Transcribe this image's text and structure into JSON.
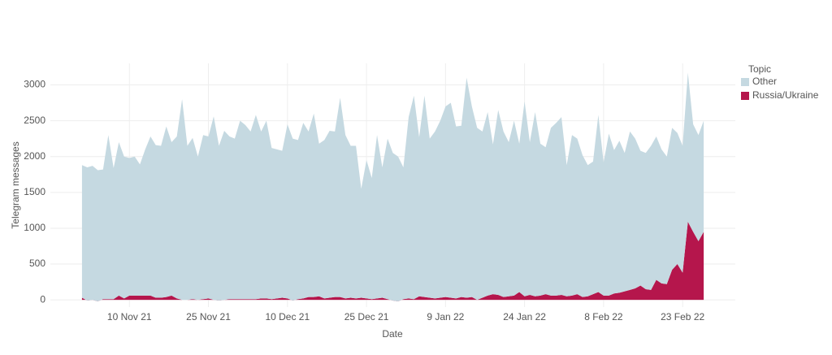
{
  "chart_data": {
    "type": "area",
    "stacked": true,
    "x_label": "Date",
    "y_label": "Telegram messages",
    "legend_title": "Topic",
    "legend_position": "right",
    "grid": true,
    "xlim": [
      "2021-10-26",
      "2022-03-05"
    ],
    "ylim": [
      -100,
      3300
    ],
    "yticks": [
      0,
      500,
      1000,
      1500,
      2000,
      2500,
      3000
    ],
    "xticks": [
      {
        "value": "2021-11-10",
        "label": "10 Nov 21"
      },
      {
        "value": "2021-11-25",
        "label": "25 Nov 21"
      },
      {
        "value": "2021-12-10",
        "label": "10 Dec 21"
      },
      {
        "value": "2021-12-25",
        "label": "25 Dec 21"
      },
      {
        "value": "2022-01-09",
        "label": "9 Jan 22"
      },
      {
        "value": "2022-01-24",
        "label": "24 Jan 22"
      },
      {
        "value": "2022-02-08",
        "label": "8 Feb 22"
      },
      {
        "value": "2022-02-23",
        "label": "23 Feb 22"
      }
    ],
    "x": [
      "2021-11-01",
      "2021-11-02",
      "2021-11-03",
      "2021-11-04",
      "2021-11-05",
      "2021-11-06",
      "2021-11-07",
      "2021-11-08",
      "2021-11-09",
      "2021-11-10",
      "2021-11-11",
      "2021-11-12",
      "2021-11-13",
      "2021-11-14",
      "2021-11-15",
      "2021-11-16",
      "2021-11-17",
      "2021-11-18",
      "2021-11-19",
      "2021-11-20",
      "2021-11-21",
      "2021-11-22",
      "2021-11-23",
      "2021-11-24",
      "2021-11-25",
      "2021-11-26",
      "2021-11-27",
      "2021-11-28",
      "2021-11-29",
      "2021-11-30",
      "2021-12-01",
      "2021-12-02",
      "2021-12-03",
      "2021-12-04",
      "2021-12-05",
      "2021-12-06",
      "2021-12-07",
      "2021-12-08",
      "2021-12-09",
      "2021-12-10",
      "2021-12-11",
      "2021-12-12",
      "2021-12-13",
      "2021-12-14",
      "2021-12-15",
      "2021-12-16",
      "2021-12-17",
      "2021-12-18",
      "2021-12-19",
      "2021-12-20",
      "2021-12-21",
      "2021-12-22",
      "2021-12-23",
      "2021-12-24",
      "2021-12-25",
      "2021-12-26",
      "2021-12-27",
      "2021-12-28",
      "2021-12-29",
      "2021-12-30",
      "2021-12-31",
      "2022-01-01",
      "2022-01-02",
      "2022-01-03",
      "2022-01-04",
      "2022-01-05",
      "2022-01-06",
      "2022-01-07",
      "2022-01-08",
      "2022-01-09",
      "2022-01-10",
      "2022-01-11",
      "2022-01-12",
      "2022-01-13",
      "2022-01-14",
      "2022-01-15",
      "2022-01-16",
      "2022-01-17",
      "2022-01-18",
      "2022-01-19",
      "2022-01-20",
      "2022-01-21",
      "2022-01-22",
      "2022-01-23",
      "2022-01-24",
      "2022-01-25",
      "2022-01-26",
      "2022-01-27",
      "2022-01-28",
      "2022-01-29",
      "2022-01-30",
      "2022-01-31",
      "2022-02-01",
      "2022-02-02",
      "2022-02-03",
      "2022-02-04",
      "2022-02-05",
      "2022-02-06",
      "2022-02-07",
      "2022-02-08",
      "2022-02-09",
      "2022-02-10",
      "2022-02-11",
      "2022-02-12",
      "2022-02-13",
      "2022-02-14",
      "2022-02-15",
      "2022-02-16",
      "2022-02-17",
      "2022-02-18",
      "2022-02-19",
      "2022-02-20",
      "2022-02-21",
      "2022-02-22",
      "2022-02-23",
      "2022-02-24",
      "2022-02-25",
      "2022-02-26",
      "2022-02-27"
    ],
    "series": [
      {
        "name": "Other",
        "color": "#c5d9e1",
        "values": [
          1850,
          1860,
          1870,
          1830,
          1810,
          2290,
          1830,
          2140,
          1980,
          1920,
          1940,
          1830,
          2040,
          2220,
          2130,
          2120,
          2380,
          2140,
          2260,
          2800,
          2150,
          2250,
          2000,
          2290,
          2260,
          2560,
          2160,
          2360,
          2270,
          2240,
          2490,
          2430,
          2340,
          2570,
          2330,
          2480,
          2110,
          2080,
          2050,
          2430,
          2260,
          2220,
          2450,
          2310,
          2560,
          2130,
          2210,
          2330,
          2310,
          2780,
          2280,
          2120,
          2130,
          1520,
          1930,
          1690,
          2280,
          1820,
          2240,
          2060,
          2020,
          1840,
          2530,
          2840,
          2220,
          2810,
          2220,
          2330,
          2470,
          2660,
          2720,
          2400,
          2390,
          3070,
          2660,
          2400,
          2320,
          2560,
          2090,
          2580,
          2310,
          2150,
          2440,
          2070,
          2720,
          2130,
          2570,
          2120,
          2050,
          2340,
          2410,
          2480,
          1830,
          2240,
          2170,
          1980,
          1830,
          1850,
          2470,
          1860,
          2260,
          2000,
          2120,
          1930,
          2210,
          2090,
          1880,
          1900,
          2010,
          2000,
          1870,
          1780,
          1980,
          1830,
          1770,
          2080,
          1500,
          1480,
          1550
        ]
      },
      {
        "name": "Russia/Ukraine",
        "color": "#b5164c",
        "values": [
          30,
          -10,
          0,
          -20,
          10,
          10,
          10,
          60,
          20,
          60,
          60,
          60,
          60,
          60,
          30,
          30,
          40,
          60,
          20,
          0,
          0,
          10,
          0,
          10,
          20,
          0,
          -10,
          0,
          10,
          10,
          10,
          10,
          10,
          10,
          20,
          20,
          10,
          20,
          30,
          20,
          -10,
          10,
          20,
          40,
          40,
          50,
          20,
          30,
          40,
          40,
          20,
          30,
          20,
          30,
          20,
          10,
          20,
          30,
          10,
          -10,
          -20,
          10,
          20,
          10,
          50,
          40,
          30,
          20,
          30,
          40,
          30,
          20,
          40,
          30,
          40,
          0,
          30,
          60,
          80,
          70,
          40,
          50,
          60,
          110,
          50,
          70,
          50,
          60,
          80,
          60,
          60,
          70,
          50,
          60,
          80,
          40,
          50,
          80,
          110,
          60,
          60,
          90,
          100,
          120,
          140,
          160,
          200,
          150,
          140,
          280,
          230,
          220,
          420,
          500,
          380,
          1090,
          950,
          820,
          950
        ]
      }
    ]
  }
}
